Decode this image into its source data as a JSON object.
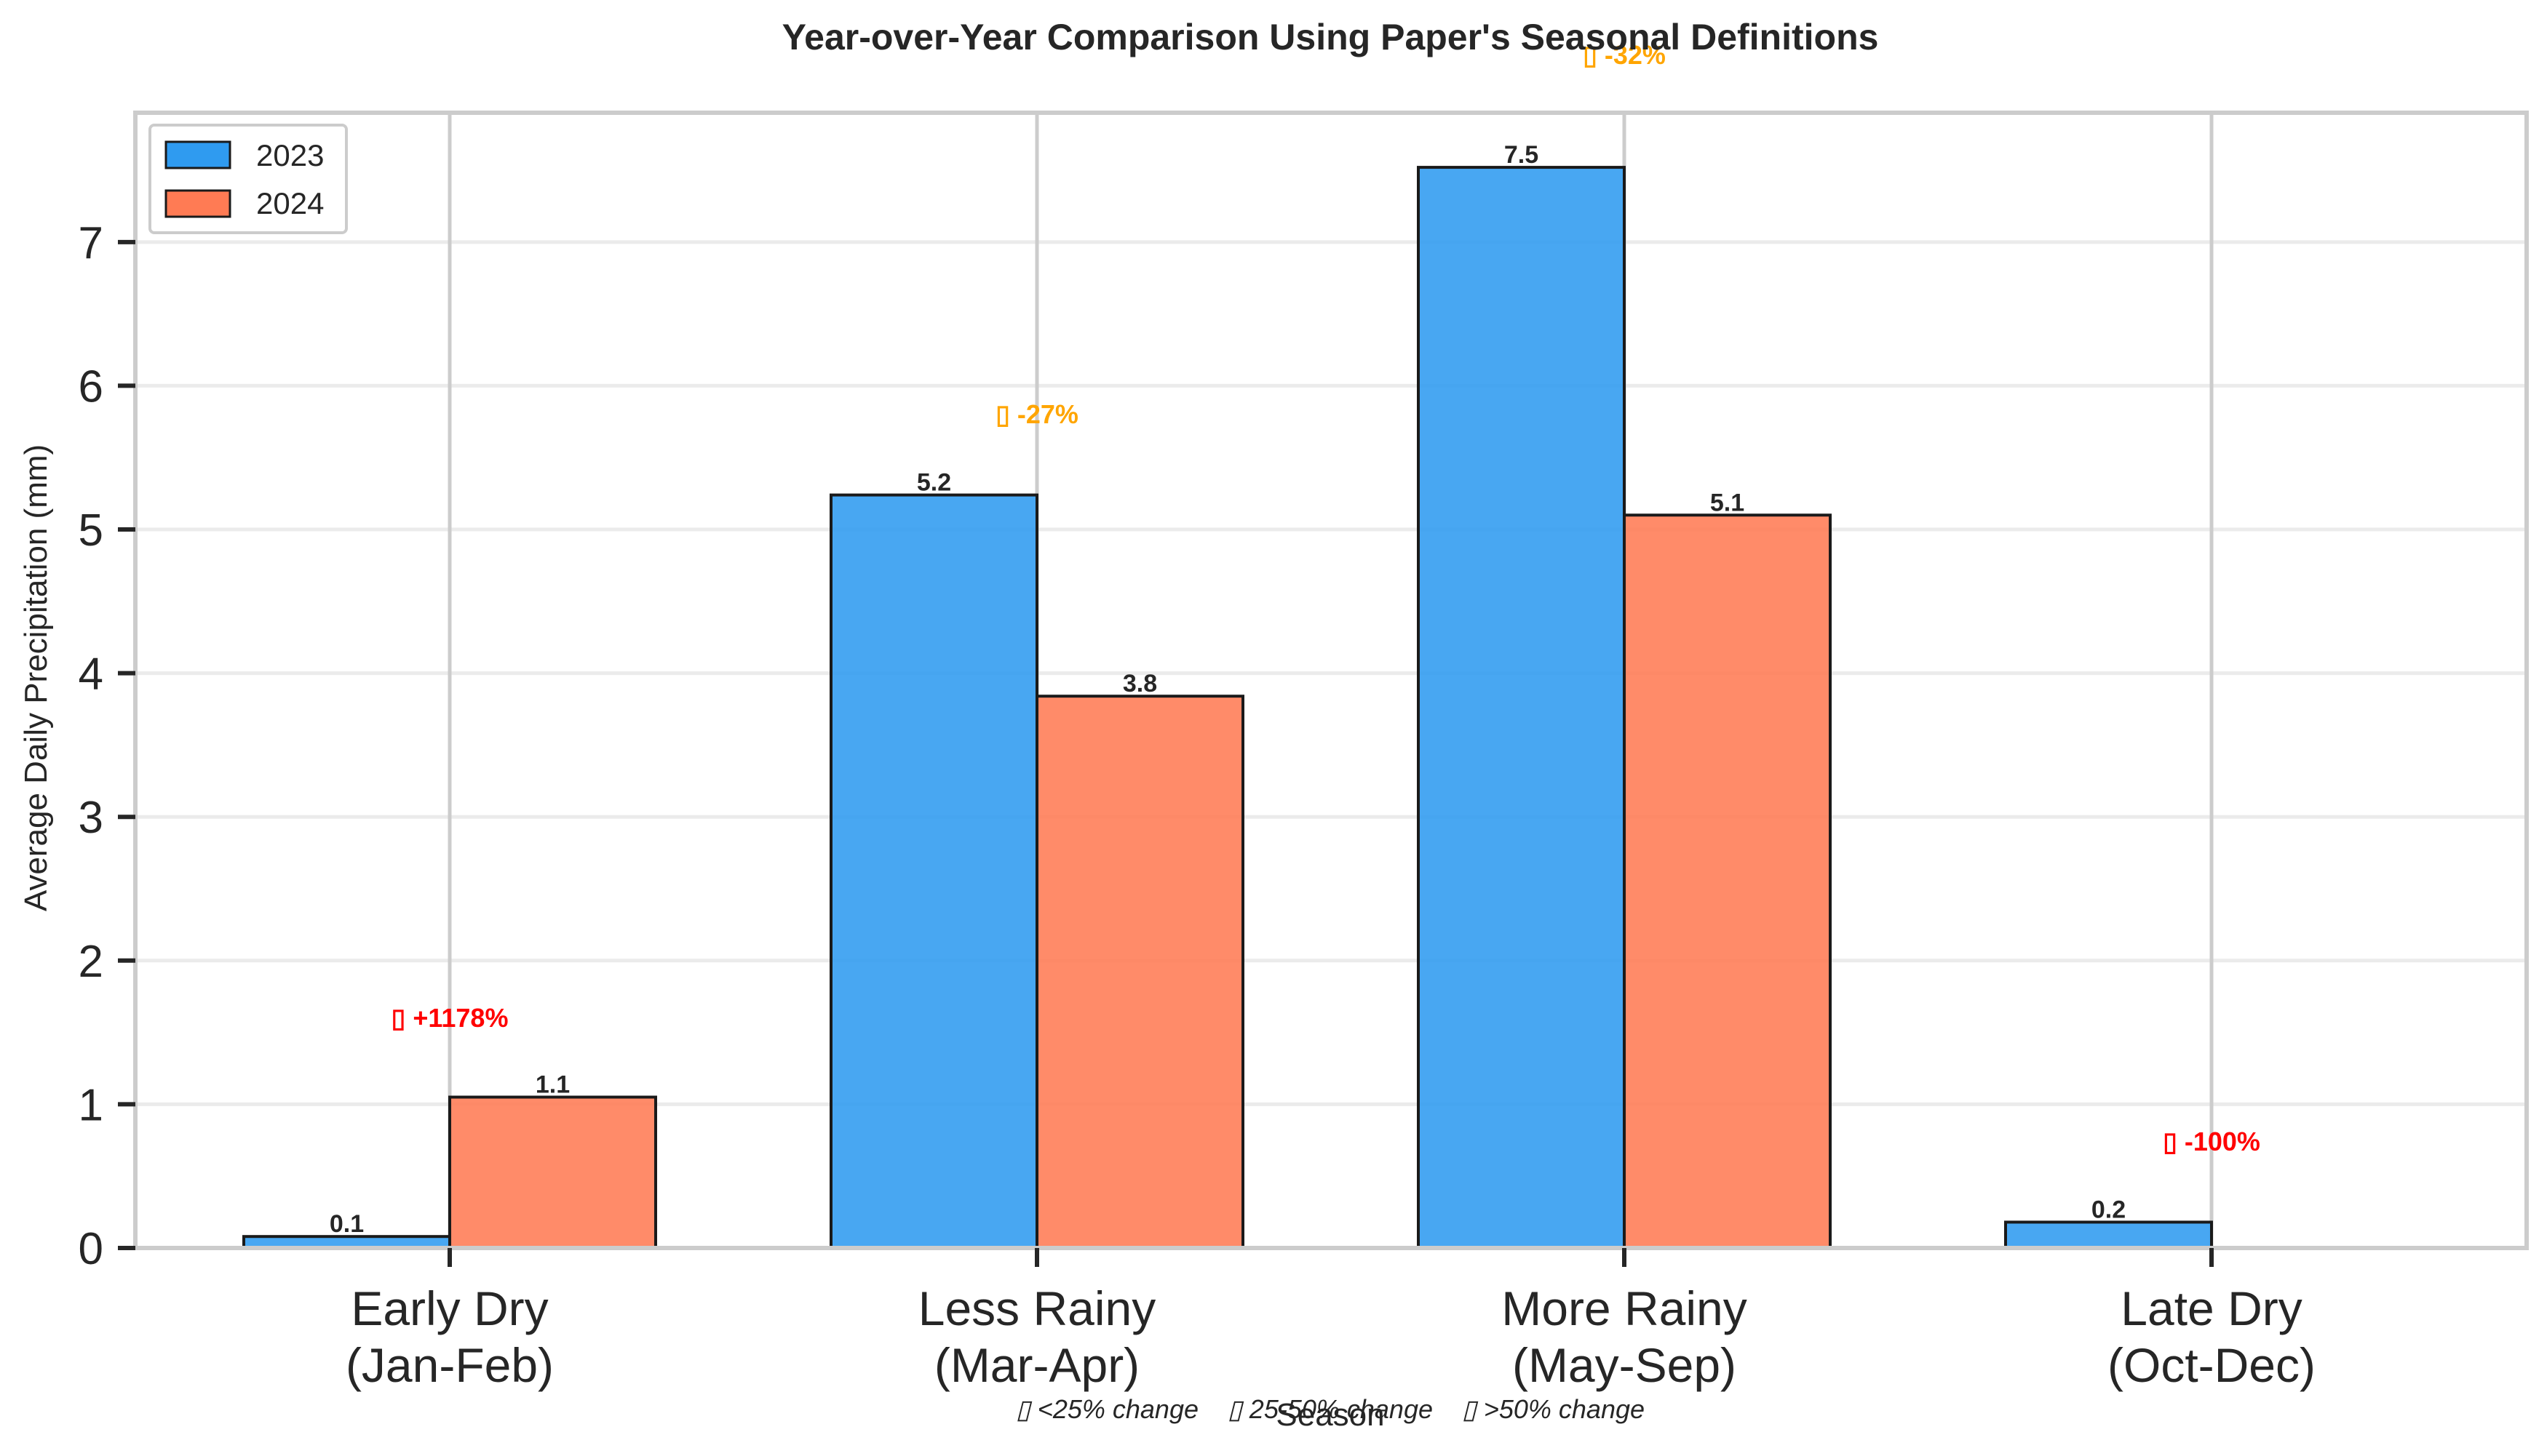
{
  "chart_data": {
    "type": "bar",
    "title": "Year-over-Year Comparison Using Paper's Seasonal Definitions",
    "xlabel": "Season",
    "ylabel": "Average Daily Precipitation (mm)",
    "ylim": [
      0,
      7.9
    ],
    "yticks": [
      0,
      1,
      2,
      3,
      4,
      5,
      6,
      7
    ],
    "grid": true,
    "legend_position": "top-left",
    "categories": [
      [
        "Early Dry",
        "(Jan-Feb)"
      ],
      [
        "Less Rainy",
        "(Mar-Apr)"
      ],
      [
        "More Rainy",
        "(May-Sep)"
      ],
      [
        "Late Dry",
        "(Oct-Dec)"
      ]
    ],
    "series": [
      {
        "name": "2023",
        "color": "#2f9bf0",
        "values": [
          0.08,
          5.24,
          7.52,
          0.18
        ],
        "labels": [
          "0.1",
          "5.2",
          "7.5",
          "0.2"
        ]
      },
      {
        "name": "2024",
        "color": "#ff7b54",
        "values": [
          1.05,
          3.84,
          5.1,
          0.0
        ],
        "labels": [
          "1.1",
          "3.8",
          "5.1",
          ""
        ]
      }
    ],
    "annotations": [
      {
        "text": "▯ +1178%",
        "y": 1.6,
        "color": "#ff0000"
      },
      {
        "text": "▯ -27%",
        "y": 5.8,
        "color": "#ffa500"
      },
      {
        "text": "▯ -32%",
        "y": 8.3,
        "color": "#ffa500"
      },
      {
        "text": "▯ -100%",
        "y": 0.74,
        "color": "#ff0000"
      }
    ],
    "footnote": "▯ <25% change    ▯ 25-50% change    ▯ >50% change"
  }
}
